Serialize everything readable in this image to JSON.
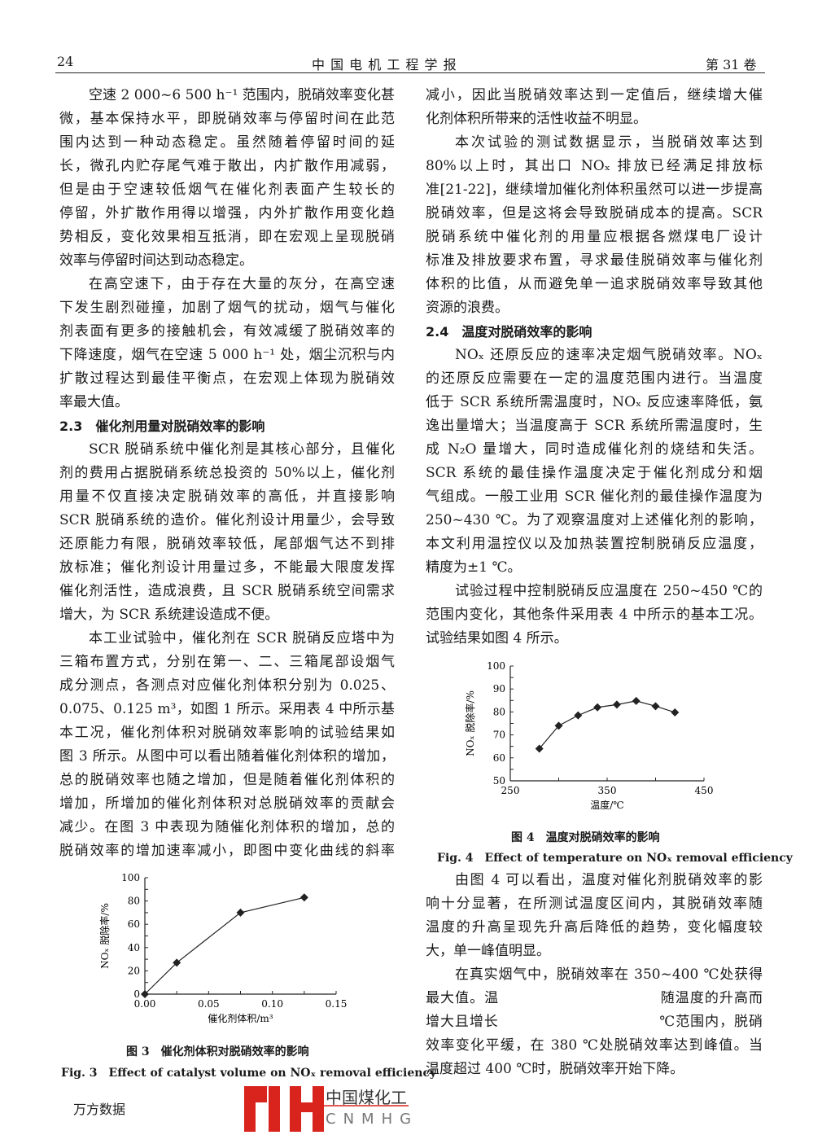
{
  "header": {
    "page_number": "24",
    "journal": "中 国 电 机 工 程 学 报",
    "volume": "第 31 卷"
  },
  "left_column": {
    "blocks": [
      {
        "type": "p",
        "indent": true,
        "lines": [
          "空速 2 000~6 500 h⁻¹ 范围内，脱硝效率变化甚",
          "微，基本保持水平，即脱硝效率与停留时间在此范",
          "围内达到一种动态稳定。虽然随着停留时间的延",
          "长，微孔内贮存尾气难于散出，内扩散作用减弱，",
          "但是由于空速较低烟气在催化剂表面产生较长的",
          "停留，外扩散作用得以增强，内外扩散作用变化趋",
          "势相反，变化效果相互抵消，即在宏观上呈现脱硝",
          "效率与停留时间达到动态稳定。"
        ]
      },
      {
        "type": "p",
        "indent": true,
        "lines": [
          "在高空速下，由于存在大量的灰分，在高空速",
          "下发生剧烈碰撞，加剧了烟气的扰动，烟气与催化",
          "剂表面有更多的接触机会，有效减缓了脱硝效率的",
          "下降速度，烟气在空速 5 000 h⁻¹ 处，烟尘沉积与内",
          "扩散过程达到最佳平衡点，在宏观上体现为脱硝效",
          "率最大值。"
        ]
      },
      {
        "type": "h",
        "lines": [
          "2.3　催化剂用量对脱硝效率的影响"
        ]
      },
      {
        "type": "p",
        "indent": true,
        "lines": [
          "SCR 脱硝系统中催化剂是其核心部分，且催化",
          "剂的费用占据脱硝系统总投资的 50%以上，催化剂",
          "用量不仅直接决定脱硝效率的高低，并直接影响",
          "SCR 脱硝系统的造价。催化剂设计用量少，会导致",
          "还原能力有限，脱硝效率较低，尾部烟气达不到排",
          "放标准；催化剂设计用量过多，不能最大限度发挥",
          "催化剂活性，造成浪费，且 SCR 脱硝系统空间需求",
          "增大，为 SCR 系统建设造成不便。"
        ]
      },
      {
        "type": "p",
        "indent": true,
        "cont": true,
        "lines": [
          "本工业试验中，催化剂在 SCR 脱硝反应塔中为",
          "三箱布置方式，分别在第一、二、三箱尾部设烟气",
          "成分测点，各测点对应催化剂体积分别为 0.025、",
          "0.075、0.125 m³，如图 1 所示。采用表 4 中所示基",
          "本工况，催化剂体积对脱硝效率影响的试验结果如",
          "图 3 所示。从图中可以看出随着催化剂体积的增加，",
          "总的脱硝效率也随之增加，但是随着催化剂体积的",
          "增加，所增加的催化剂体积对总脱硝效率的贡献会",
          "减少。在图 3 中表现为随催化剂体积的增加，总的",
          "脱硝效率的增加速率减小，即图中变化曲线的斜率"
        ]
      }
    ]
  },
  "right_column": {
    "blocks": [
      {
        "type": "p",
        "indent": false,
        "lines": [
          "减小，因此当脱硝效率达到一定值后，继续增大催",
          "化剂体积所带来的活性收益不明显。"
        ]
      },
      {
        "type": "p",
        "indent": true,
        "lines": [
          "本次试验的测试数据显示，当脱硝效率达到",
          "80%以上时，其出口 NOₓ 排放已经满足排放标",
          "准[21-22]，继续增加催化剂体积虽然可以进一步提高",
          "脱硝效率，但是这将会导致脱硝成本的提高。SCR",
          "脱硝系统中催化剂的用量应根据各燃煤电厂设计",
          "标准及排放要求布置，寻求最佳脱硝效率与催化剂",
          "体积的比值，从而避免单一追求脱硝效率导致其他",
          "资源的浪费。"
        ]
      },
      {
        "type": "h",
        "lines": [
          "2.4　温度对脱硝效率的影响"
        ]
      },
      {
        "type": "p",
        "indent": true,
        "lines": [
          "NOₓ 还原反应的速率决定烟气脱硝效率。NOₓ",
          "的还原反应需要在一定的温度范围内进行。当温度",
          "低于 SCR 系统所需温度时，NOₓ 反应速率降低，氨",
          "逸出量增大；当温度高于 SCR 系统所需温度时，生",
          "成 N₂O 量增大，同时造成催化剂的烧结和失活。",
          "SCR 系统的最佳操作温度决定于催化剂成分和烟",
          "气组成。一般工业用 SCR 催化剂的最佳操作温度为",
          "250~430 ℃。为了观察温度对上述催化剂的影响，",
          "本文利用温控仪以及加热装置控制脱硝反应温度，",
          "精度为±1 ℃。"
        ]
      },
      {
        "type": "p",
        "indent": true,
        "lines": [
          "试验过程中控制脱硝反应温度在 250~450 ℃的",
          "范围内变化，其他条件采用表 4 中所示的基本工况。",
          "试验结果如图 4 所示。"
        ]
      }
    ]
  },
  "right_bottom": {
    "blocks": [
      {
        "type": "p",
        "indent": true,
        "lines": [
          "由图 4 可以看出，温度对催化剂脱硝效率的影",
          "响十分显著，在所测试温度区间内，其脱硝效率随",
          "温度的升高呈现先升高后降低的趋势，变化幅度较",
          "大，单一峰值明显。"
        ]
      },
      {
        "type": "p",
        "indent": true,
        "lines": [
          "在真实烟气中，脱硝效率在 350~400 ℃处获得",
          "最大值。温　　　　　　　　　　　随温度的升高而",
          "增大且增长　　　　　　　　　　　℃范围内，脱硝",
          "效率变化平缓，在 380 ℃处脱硝效率达到峰值。当",
          "温度超过 400 ℃时，脱硝效率开始下降。"
        ]
      }
    ]
  },
  "watermark": {
    "text_cn": "中国煤化工",
    "text_en": "CNMHG",
    "color": "#d9231d"
  },
  "figures": {
    "fig3": {
      "caption_cn": "图 3　催化剂体积对脱硝效率的影响",
      "caption_en": "Fig. 3　Effect of catalyst volume on NOₓ removal efficiency"
    },
    "fig4": {
      "caption_cn": "图 4　温度对脱硝效率的影响",
      "caption_en": "Fig. 4　Effect of temperature on NOₓ removal efficiency"
    }
  },
  "chart_data": [
    {
      "id": "fig3",
      "type": "line",
      "xlabel": "催化剂体积/m³",
      "ylabel": "NOₓ 脱除率/%",
      "x": [
        0,
        0.025,
        0.075,
        0.125
      ],
      "y": [
        0,
        27,
        70,
        83
      ],
      "xlim": [
        0,
        0.15
      ],
      "ylim": [
        0,
        100
      ],
      "xticks": [
        "0.00",
        "0.05",
        "0.10",
        "0.15"
      ],
      "yticks": [
        "0",
        "20",
        "40",
        "60",
        "80",
        "100"
      ],
      "marker": "diamond",
      "grid": false
    },
    {
      "id": "fig4",
      "type": "line",
      "xlabel": "温度/℃",
      "ylabel": "NOₓ 脱除率/%",
      "x": [
        280,
        300,
        320,
        340,
        360,
        380,
        400,
        420
      ],
      "y": [
        64,
        74,
        78.5,
        82,
        83.2,
        84.8,
        82.5,
        79.8
      ],
      "xlim": [
        250,
        450
      ],
      "ylim": [
        50,
        100
      ],
      "xticks": [
        "250",
        "350",
        "450"
      ],
      "yticks": [
        "50",
        "60",
        "70",
        "80",
        "90",
        "100"
      ],
      "marker": "diamond",
      "grid": false
    }
  ],
  "footer": {
    "source": "万方数据"
  }
}
